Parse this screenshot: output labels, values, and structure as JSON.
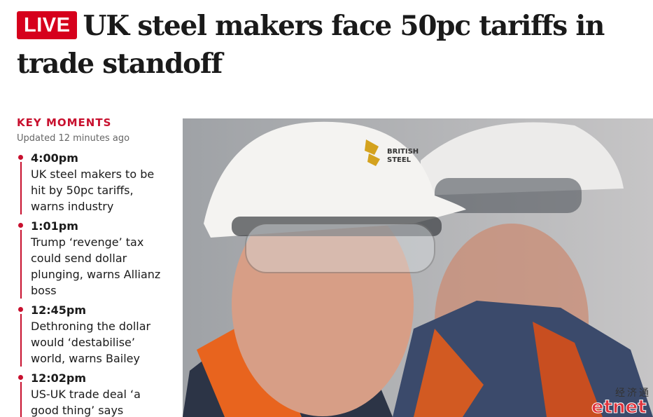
{
  "header": {
    "badge": "LIVE",
    "title": "UK steel makers face 50pc tariffs in trade standoff"
  },
  "sidebar": {
    "heading": "KEY MOMENTS",
    "updated": "Updated 12 minutes ago",
    "moments": [
      {
        "time": "4:00pm",
        "text": "UK steel makers to be hit by 50pc tariffs, warns industry"
      },
      {
        "time": "1:01pm",
        "text": "Trump ‘revenge’ tax could send dollar plunging, warns Allianz boss"
      },
      {
        "time": "12:45pm",
        "text": "Dethroning the dollar would ‘destabilise’ world, warns Bailey"
      },
      {
        "time": "12:02pm",
        "text": "US-UK trade deal ‘a good thing’ says"
      }
    ]
  },
  "photo": {
    "helmet_logo": [
      "BRITISH",
      "STEEL"
    ],
    "watermark": [
      "经济通",
      "etnet"
    ]
  }
}
